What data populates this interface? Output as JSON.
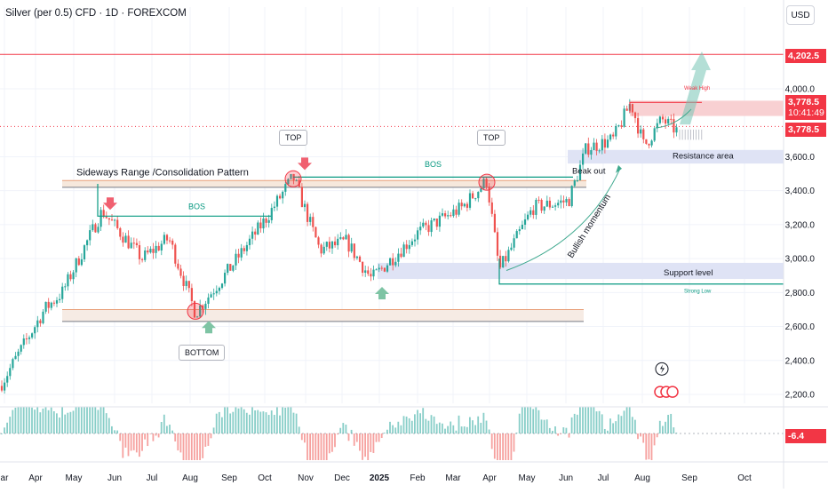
{
  "header": {
    "symbol_title": "Silver (per 0.5) CFD · 1D · FOREXCOM",
    "currency_button": "USD"
  },
  "price_tags": {
    "target": "4,202.5",
    "last_price": "3,778.5",
    "countdown": "10:41:49",
    "dotted_level": "3,778.5",
    "oscillator_value": "-6.4"
  },
  "annotations": {
    "range_label": "Sideways Range /Consolidation Pattern",
    "bos_left": "BOS",
    "bos_right": "BOS",
    "top_left": "TOP",
    "top_right": "TOP",
    "bottom": "BOTTOM",
    "breakout": "Beak out",
    "momentum": "Bullish momentum",
    "resistance": "Resistance area",
    "support": "Support level",
    "weak_high": "Weak High",
    "strong_low": "Strong Low"
  },
  "colors": {
    "bull": "#26a69a",
    "bear": "#ef5350",
    "price_tag": "#f23645",
    "zone": "#dfe3f5"
  },
  "chart_data": {
    "type": "candlestick",
    "title": "Silver (per 0.5) CFD · 1D · FOREXCOM",
    "currency": "USD",
    "y_ticks": [
      2200,
      2400,
      2600,
      2800,
      3000,
      3200,
      3400,
      3600,
      4000
    ],
    "y_tick_labels": [
      "2,200.0",
      "2,400.0",
      "2,600.0",
      "2,800.0",
      "3,000.0",
      "3,200.0",
      "3,400.0",
      "3,600.0",
      "4,000.0"
    ],
    "x_tick_labels": [
      "ar",
      "Apr",
      "May",
      "Jun",
      "Jul",
      "Aug",
      "Sep",
      "Oct",
      "Nov",
      "Dec",
      "2025",
      "Feb",
      "Mar",
      "Apr",
      "May",
      "Jun",
      "Jul",
      "Aug",
      "Sep",
      "Oct"
    ],
    "key_points": [
      {
        "label": "start",
        "value": 2250
      },
      {
        "label": "May peak",
        "value": 3280
      },
      {
        "label": "Aug bottom",
        "value": 2680
      },
      {
        "label": "Oct top",
        "value": 3480
      },
      {
        "label": "Dec low",
        "value": 2880
      },
      {
        "label": "Mar top",
        "value": 3460
      },
      {
        "label": "Apr low",
        "value": 2930
      },
      {
        "label": "Jul high",
        "value": 3920
      },
      {
        "label": "last",
        "value": 3778.5
      }
    ],
    "levels": {
      "target": 4202.5,
      "weak_high": 3920,
      "resistance_zone": [
        3560,
        3640
      ],
      "support_zone": [
        2880,
        2975
      ],
      "range_top": [
        3420,
        3460
      ],
      "range_bottom": [
        2630,
        2700
      ],
      "bos_left": 3250,
      "bos_right": 3480,
      "strong_low": 2850
    },
    "oscillator": {
      "last": -6.4,
      "zero": 0
    },
    "grid": true
  }
}
